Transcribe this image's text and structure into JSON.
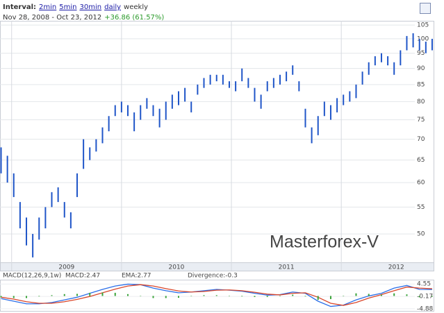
{
  "header": {
    "interval_label": "Interval:",
    "links": [
      "2min",
      "5min",
      "30min",
      "daily"
    ],
    "current": "weekly",
    "range": "Nov 28, 2008 - Oct 23, 2012",
    "change": "+36.86 (61.57%)"
  },
  "watermark": "Masterforex-V",
  "chart_data": [
    {
      "type": "ohlc",
      "color": "#1f55c8",
      "log_scale": true,
      "grid": true,
      "x": [
        0,
        3,
        6,
        9,
        12,
        15,
        18,
        21,
        24,
        27,
        30,
        33,
        36,
        39,
        42,
        45,
        48,
        51,
        54,
        57,
        60,
        63,
        66,
        69,
        72,
        75,
        78,
        81,
        84,
        87,
        90,
        93,
        96,
        99,
        102,
        105,
        108,
        111,
        114,
        117,
        120,
        123,
        126,
        129,
        132,
        135,
        138,
        141,
        144,
        147,
        150,
        153,
        156,
        159,
        162,
        165,
        168,
        171,
        174,
        177,
        180,
        183,
        186,
        189,
        192,
        195,
        198,
        201,
        204
      ],
      "low": [
        62,
        60,
        57,
        51,
        48,
        46,
        49,
        51,
        55,
        56,
        53,
        51,
        57,
        63,
        65,
        67,
        69,
        72,
        76,
        77,
        76,
        72,
        75,
        78,
        76,
        73,
        75,
        78,
        79,
        80,
        77,
        82,
        84,
        85,
        86,
        85,
        84,
        83,
        86,
        84,
        80,
        78,
        83,
        84,
        85,
        86,
        88,
        83,
        73,
        69,
        71,
        76,
        75,
        77,
        79,
        80,
        81,
        85,
        88,
        91,
        92,
        91,
        88,
        91,
        96,
        97,
        96,
        95,
        96
      ],
      "high": [
        68,
        66,
        62,
        56,
        53,
        50,
        53,
        55,
        58,
        59,
        56,
        54,
        62,
        70,
        68,
        70,
        73,
        76,
        79,
        80,
        79,
        77,
        79,
        81,
        79,
        78,
        80,
        82,
        83,
        84,
        80,
        85,
        87,
        88,
        88,
        88,
        86,
        86,
        90,
        87,
        84,
        82,
        86,
        87,
        88,
        89,
        91,
        86,
        78,
        73,
        76,
        80,
        79,
        81,
        82,
        83,
        85,
        89,
        92,
        94,
        95,
        94,
        92,
        96,
        101,
        102,
        100,
        99,
        100
      ],
      "xlim": [
        -0.5,
        205
      ],
      "xticks": [
        {
          "value": 5,
          "label": "2009"
        },
        {
          "value": 57,
          "label": "2010"
        },
        {
          "value": 109,
          "label": "2011"
        },
        {
          "value": 161,
          "label": "2012"
        }
      ],
      "ylim": [
        45.2,
        106.6
      ],
      "yticks": [
        105,
        100,
        95,
        90,
        85,
        80,
        75,
        70,
        65,
        60,
        55,
        50
      ]
    },
    {
      "type": "macd",
      "title": "MACD(12,26,9,1w)",
      "x": [
        0,
        6,
        12,
        18,
        24,
        30,
        36,
        42,
        48,
        54,
        60,
        66,
        72,
        78,
        84,
        90,
        96,
        102,
        108,
        114,
        120,
        126,
        132,
        138,
        144,
        150,
        156,
        162,
        168,
        174,
        180,
        186,
        192,
        198,
        204
      ],
      "series": [
        {
          "name": "MACD:2.47",
          "color": "#2a6ee8",
          "values": [
            -1.0,
            -2.0,
            -3.0,
            -3.0,
            -2.5,
            -1.5,
            -0.5,
            1.0,
            2.5,
            3.8,
            4.5,
            4.3,
            3.0,
            2.0,
            1.2,
            1.5,
            2.0,
            2.5,
            2.2,
            1.8,
            1.0,
            0.3,
            0.5,
            1.5,
            1.0,
            -2.0,
            -4.0,
            -3.5,
            -1.5,
            0.0,
            1.0,
            3.0,
            4.0,
            2.5,
            2.47
          ]
        },
        {
          "name": "EMA:2.77",
          "color": "#d8452a",
          "values": [
            -0.5,
            -1.2,
            -2.2,
            -2.8,
            -2.8,
            -2.2,
            -1.3,
            -0.2,
            1.2,
            2.6,
            3.8,
            4.3,
            3.8,
            2.8,
            1.9,
            1.5,
            1.7,
            2.2,
            2.3,
            2.0,
            1.4,
            0.7,
            0.4,
            1.0,
            1.2,
            -0.5,
            -2.8,
            -3.6,
            -2.5,
            -0.8,
            0.5,
            2.0,
            3.4,
            3.0,
            2.77
          ]
        },
        {
          "name": "Divergence:-0.3",
          "color": "#3aa33a",
          "values": [
            -0.5,
            -0.8,
            -0.8,
            -0.2,
            0.3,
            0.7,
            0.8,
            1.2,
            1.3,
            1.2,
            0.7,
            0.0,
            -0.8,
            -0.8,
            -0.7,
            0.0,
            0.3,
            0.3,
            -0.1,
            -0.2,
            -0.4,
            -0.4,
            0.1,
            0.5,
            -0.2,
            -1.5,
            -1.2,
            0.1,
            1.0,
            0.8,
            0.5,
            1.0,
            0.6,
            -0.5,
            -0.3
          ]
        }
      ],
      "xlim": [
        -0.5,
        205
      ],
      "ylim": [
        -5.71,
        5.94
      ],
      "yticks": [
        4.55,
        -0.17,
        -4.88
      ]
    }
  ]
}
